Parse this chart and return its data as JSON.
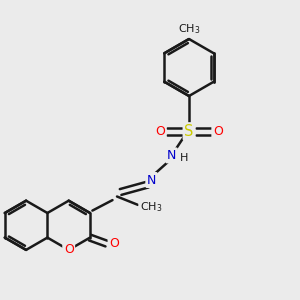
{
  "bg_color": "#ebebeb",
  "bond_color": "#1a1a1a",
  "bond_width": 1.8,
  "atom_colors": {
    "O": "#ff0000",
    "N": "#0000cc",
    "S": "#cccc00",
    "C": "#1a1a1a",
    "H": "#1a1a1a"
  },
  "font_size": 8.5,
  "figsize": [
    3.0,
    3.0
  ],
  "dpi": 100
}
